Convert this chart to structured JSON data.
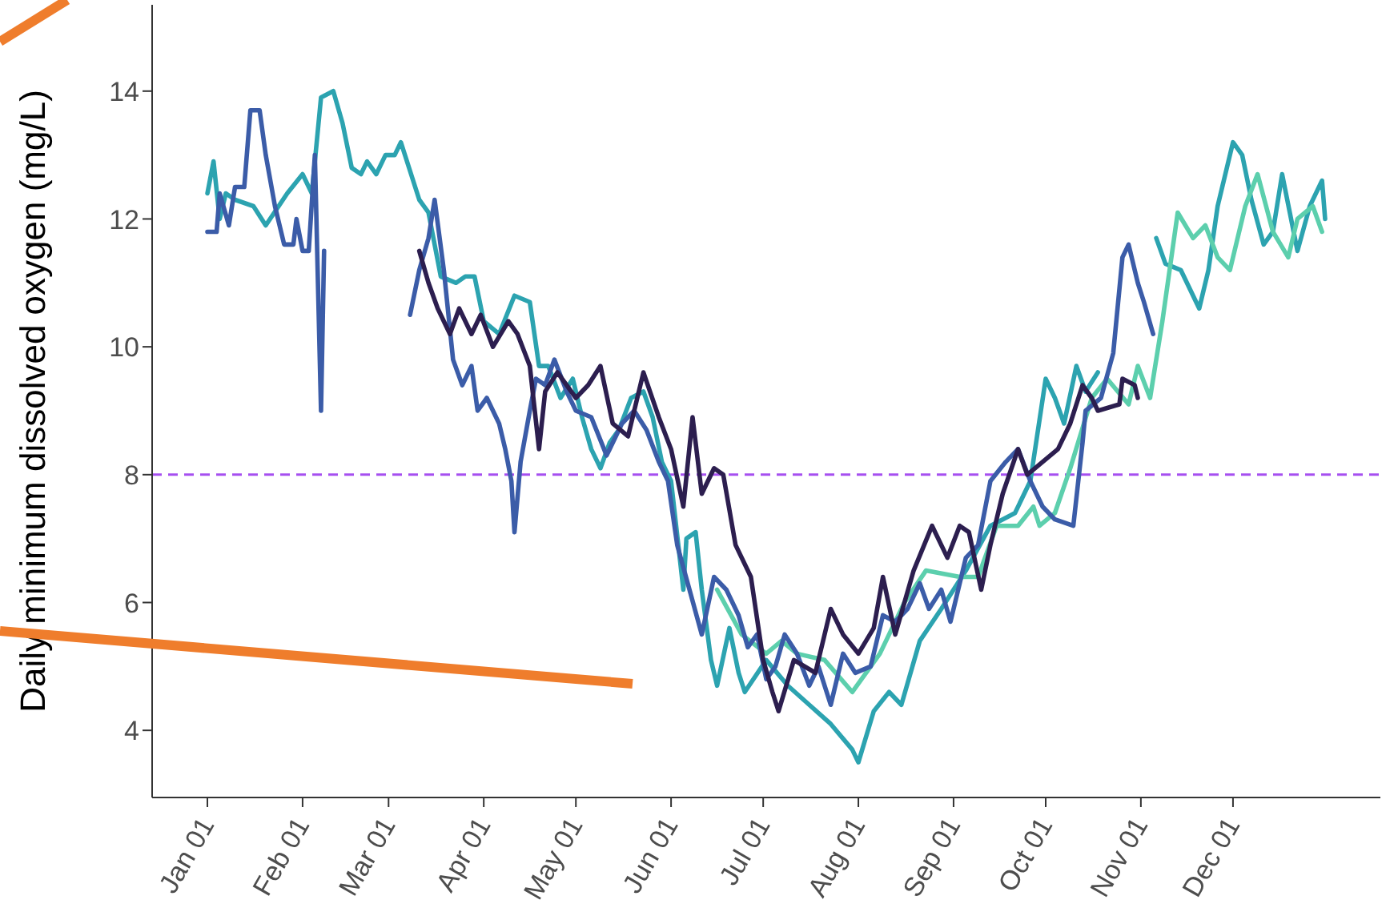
{
  "chart_data": {
    "type": "line",
    "ylabel": "Daily minimum dissolved oxygen (mg/L)",
    "xlim": [
      "2000-12-14",
      "2002-01-18"
    ],
    "xticks": [
      {
        "value": "--01-01",
        "label": "Jan 01"
      },
      {
        "value": "--02-01",
        "label": "Feb 01"
      },
      {
        "value": "--03-01",
        "label": "Mar 01"
      },
      {
        "value": "--04-01",
        "label": "Apr 01"
      },
      {
        "value": "--05-01",
        "label": "May 01"
      },
      {
        "value": "--06-01",
        "label": "Jun 01"
      },
      {
        "value": "--07-01",
        "label": "Jul 01"
      },
      {
        "value": "--08-01",
        "label": "Aug 01"
      },
      {
        "value": "--09-01",
        "label": "Sep 01"
      },
      {
        "value": "--10-01",
        "label": "Oct 01"
      },
      {
        "value": "--11-01",
        "label": "Nov 01"
      },
      {
        "value": "--12-01",
        "label": "Dec 01"
      }
    ],
    "ylim": [
      2.95,
      15.35
    ],
    "yticks": [
      4,
      6,
      8,
      10,
      12,
      14
    ],
    "marker": "none",
    "line_style": "solid",
    "ref_lines": [
      {
        "axis": "y",
        "value": 8,
        "color": "#a64ff0",
        "line_style": "dashed"
      }
    ],
    "series": [
      {
        "color": "#2ca3b0",
        "x": [
          "--01-01",
          "--01-03",
          "--01-05",
          "--01-07",
          "--01-10",
          "--01-16",
          "--01-20",
          "--01-27",
          "--02-01",
          "--02-04",
          "--02-07",
          "--02-11",
          "--02-14",
          "--02-17",
          "--02-20",
          "--02-22",
          "--02-25",
          "--02-28",
          "--03-03",
          "--03-05",
          "--03-11",
          "--03-14",
          "--03-18",
          "--03-23",
          "--03-26",
          "--03-29",
          "--04-01",
          "--04-06",
          "--04-11",
          "--04-16",
          "--04-19",
          "--04-22",
          "--04-26",
          "--04-30",
          "--05-03",
          "--05-06",
          "--05-09",
          "--05-12",
          "--05-15",
          "--05-19",
          "--05-23",
          "--05-26",
          "--05-29",
          "--06-01",
          "--06-05",
          "--06-06",
          "--06-09",
          "--06-11",
          "--06-14",
          "--06-16",
          "--06-20",
          "--06-23",
          "--06-25",
          "--07-02",
          "--07-09",
          "--07-16",
          "--07-23",
          "--07-30",
          "--08-01",
          "--08-06",
          "--08-11",
          "--08-15",
          "--08-21",
          "--08-28",
          "--09-05",
          "--09-13",
          "--09-21",
          "--09-26",
          "--10-01",
          "--10-04",
          "--10-07",
          "--10-11",
          "--10-14",
          "--10-18",
          "--10-27",
          "--11-06",
          "--11-09",
          "--11-14",
          "--11-20",
          "--11-23",
          "--11-26",
          "--12-01",
          "--12-04",
          "--12-07",
          "--12-11",
          "--12-14",
          "--12-17",
          "--12-22",
          "--12-26",
          "--12-30",
          "--12-31"
        ],
        "values": [
          12.4,
          12.9,
          12.0,
          12.4,
          12.3,
          12.2,
          11.9,
          12.4,
          12.7,
          12.4,
          13.9,
          14.0,
          13.5,
          12.8,
          12.7,
          12.9,
          12.7,
          13.0,
          13.0,
          13.2,
          12.3,
          12.1,
          11.1,
          11.0,
          11.1,
          11.1,
          10.4,
          10.2,
          10.8,
          10.7,
          9.7,
          9.7,
          9.2,
          9.5,
          8.9,
          8.4,
          8.1,
          8.5,
          8.7,
          9.2,
          9.3,
          8.9,
          8.2,
          7.9,
          6.2,
          7.0,
          7.1,
          6.2,
          5.1,
          4.7,
          5.6,
          4.9,
          4.6,
          5.1,
          4.7,
          4.4,
          4.1,
          3.7,
          3.5,
          4.3,
          4.6,
          4.4,
          5.4,
          5.9,
          6.5,
          7.2,
          7.4,
          7.9,
          9.5,
          9.2,
          8.8,
          9.7,
          9.3,
          9.6,
          null,
          11.7,
          11.3,
          11.2,
          10.6,
          11.2,
          12.2,
          13.2,
          13.0,
          12.3,
          11.6,
          11.8,
          12.7,
          11.5,
          12.2,
          12.6,
          12.0
        ]
      },
      {
        "color": "#5ccfad",
        "x": [
          "--06-16",
          "--06-24",
          "--07-02",
          "--07-07",
          "--07-12",
          "--07-21",
          "--07-30",
          "--08-08",
          "--08-16",
          "--08-23",
          "--09-03",
          "--09-09",
          "--09-15",
          "--09-22",
          "--09-27",
          "--09-29",
          "--10-04",
          "--10-09",
          "--10-16",
          "--10-21",
          "--10-28",
          "--10-31",
          "--11-04",
          "--11-08",
          "--11-13",
          "--11-18",
          "--11-22",
          "--11-26",
          "--11-30",
          "--12-05",
          "--12-09",
          "--12-14",
          "--12-19",
          "--12-22",
          "--12-27",
          "--12-30"
        ],
        "values": [
          6.2,
          5.5,
          5.2,
          5.4,
          5.2,
          5.1,
          4.6,
          5.2,
          6.0,
          6.5,
          6.4,
          6.4,
          7.2,
          7.2,
          7.5,
          7.2,
          7.4,
          8.1,
          9.2,
          9.5,
          9.1,
          9.7,
          9.2,
          10.4,
          12.1,
          11.7,
          11.9,
          11.4,
          11.2,
          12.2,
          12.7,
          11.8,
          11.4,
          12.0,
          12.2,
          11.8
        ]
      },
      {
        "color": "#3b5ca8",
        "x": [
          "--01-01",
          "--01-04",
          "--01-05",
          "--01-08",
          "--01-10",
          "--01-13",
          "--01-15",
          "--01-18",
          "--01-20",
          "--01-23",
          "--01-26",
          "--01-29",
          "--01-30",
          "--02-01",
          "--02-03",
          "--02-05",
          "--02-07",
          "--02-08",
          "--02-19",
          "--03-08",
          "--03-11",
          "--03-14",
          "--03-16",
          "--03-19",
          "--03-22",
          "--03-25",
          "--03-28",
          "--03-30",
          "--04-02",
          "--04-06",
          "--04-08",
          "--04-10",
          "--04-11",
          "--04-13",
          "--04-16",
          "--04-18",
          "--04-21",
          "--04-24",
          "--04-28",
          "--05-01",
          "--05-06",
          "--05-11",
          "--05-16",
          "--05-20",
          "--05-24",
          "--05-28",
          "--05-31",
          "--06-03",
          "--06-07",
          "--06-11",
          "--06-15",
          "--06-19",
          "--06-23",
          "--06-26",
          "--06-29",
          "--07-02",
          "--07-05",
          "--07-08",
          "--07-12",
          "--07-16",
          "--07-19",
          "--07-23",
          "--07-27",
          "--07-31",
          "--08-05",
          "--08-09",
          "--08-13",
          "--08-17",
          "--08-21",
          "--08-24",
          "--08-28",
          "--08-31",
          "--09-05",
          "--09-09",
          "--09-13",
          "--09-18",
          "--09-22",
          "--09-26",
          "--09-30",
          "--10-04",
          "--10-10",
          "--10-13",
          "--10-14",
          "--10-19",
          "--10-23",
          "--10-26",
          "--10-28",
          "--10-31",
          "--11-02",
          "--11-05"
        ],
        "values": [
          11.8,
          11.8,
          12.4,
          11.9,
          12.5,
          12.5,
          13.7,
          13.7,
          13.0,
          12.2,
          11.6,
          11.6,
          12.0,
          11.5,
          11.5,
          13.0,
          9.0,
          11.5,
          null,
          10.5,
          11.2,
          11.7,
          12.3,
          11.2,
          9.8,
          9.4,
          9.7,
          9.0,
          9.2,
          8.8,
          8.4,
          7.9,
          7.1,
          8.2,
          9.0,
          9.5,
          9.4,
          9.8,
          9.3,
          9.0,
          8.9,
          8.3,
          8.8,
          9.0,
          8.7,
          8.2,
          7.9,
          6.9,
          6.2,
          5.5,
          6.4,
          6.2,
          5.8,
          5.3,
          5.5,
          4.8,
          5.0,
          5.5,
          5.2,
          4.7,
          5.0,
          4.4,
          5.2,
          4.9,
          5.0,
          5.8,
          5.7,
          5.9,
          6.3,
          5.9,
          6.2,
          5.7,
          6.7,
          6.9,
          7.9,
          8.2,
          8.4,
          7.9,
          7.5,
          7.3,
          7.2,
          8.5,
          9.0,
          9.2,
          9.9,
          11.4,
          11.6,
          11.0,
          10.7,
          10.2
        ]
      },
      {
        "color": "#2c1e4f",
        "x": [
          "--03-11",
          "--03-14",
          "--03-17",
          "--03-21",
          "--03-24",
          "--03-28",
          "--03-31",
          "--04-04",
          "--04-09",
          "--04-12",
          "--04-16",
          "--04-19",
          "--04-21",
          "--04-25",
          "--05-01",
          "--05-05",
          "--05-09",
          "--05-13",
          "--05-18",
          "--05-23",
          "--05-28",
          "--06-01",
          "--06-05",
          "--06-08",
          "--06-11",
          "--06-15",
          "--06-18",
          "--06-22",
          "--06-27",
          "--07-01",
          "--07-04",
          "--07-06",
          "--07-11",
          "--07-18",
          "--07-23",
          "--07-27",
          "--08-01",
          "--08-06",
          "--08-09",
          "--08-13",
          "--08-19",
          "--08-25",
          "--08-30",
          "--09-03",
          "--09-06",
          "--09-10",
          "--09-13",
          "--09-17",
          "--09-22",
          "--09-25",
          "--09-30",
          "--10-05",
          "--10-09",
          "--10-13",
          "--10-16",
          "--10-18",
          "--10-25",
          "--10-26",
          "--10-30",
          "--10-31"
        ],
        "values": [
          11.5,
          11.0,
          10.6,
          10.2,
          10.6,
          10.2,
          10.5,
          10.0,
          10.4,
          10.2,
          9.7,
          8.4,
          9.3,
          9.6,
          9.2,
          9.4,
          9.7,
          8.8,
          8.6,
          9.6,
          8.9,
          8.4,
          7.5,
          8.9,
          7.7,
          8.1,
          8.0,
          6.9,
          6.4,
          5.1,
          4.6,
          4.3,
          5.1,
          4.9,
          5.9,
          5.5,
          5.2,
          5.6,
          6.4,
          5.5,
          6.5,
          7.2,
          6.7,
          7.2,
          7.1,
          6.2,
          6.9,
          7.7,
          8.4,
          8.0,
          8.2,
          8.4,
          8.8,
          9.4,
          9.2,
          9.0,
          9.1,
          9.5,
          9.4,
          9.2
        ]
      }
    ]
  }
}
